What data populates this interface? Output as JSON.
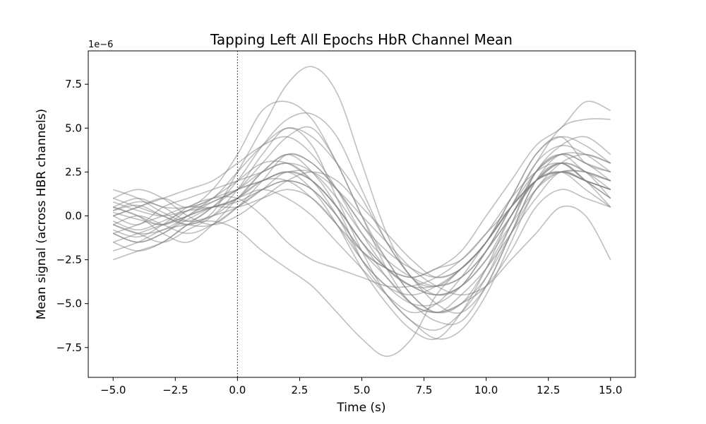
{
  "chart_data": {
    "type": "line",
    "title": "Tapping Left All Epochs HbR Channel Mean",
    "xlabel": "Time (s)",
    "ylabel": "Mean signal (across HBR channels)",
    "y_offset_label": "1e−6",
    "xlim": [
      -6.0,
      16.0
    ],
    "ylim": [
      -9.2,
      9.4
    ],
    "x_ticks": [
      -5.0,
      -2.5,
      0.0,
      2.5,
      5.0,
      7.5,
      10.0,
      12.5,
      15.0
    ],
    "x_tick_labels": [
      "−5.0",
      "−2.5",
      "0.0",
      "2.5",
      "5.0",
      "7.5",
      "10.0",
      "12.5",
      "15.0"
    ],
    "y_ticks": [
      -7.5,
      -5.0,
      -2.5,
      0.0,
      2.5,
      5.0,
      7.5
    ],
    "y_tick_labels": [
      "−7.5",
      "−5.0",
      "−2.5",
      "0.0",
      "2.5",
      "5.0",
      "7.5"
    ],
    "event_line_x": 0.0,
    "grid": false,
    "line_color": "#7f7f7f",
    "x": [
      -5,
      -4,
      -3,
      -2,
      -1,
      0,
      1,
      2,
      3,
      4,
      5,
      6,
      7,
      8,
      9,
      10,
      11,
      12,
      13,
      14,
      15
    ],
    "series": [
      {
        "values": [
          1.5,
          1.0,
          0.2,
          -0.3,
          0.5,
          2.0,
          4.0,
          5.5,
          5.8,
          4.5,
          1.5,
          -1.5,
          -3.5,
          -5.0,
          -5.5,
          -4.0,
          -1.0,
          2.0,
          3.5,
          3.0,
          2.5
        ]
      },
      {
        "values": [
          -0.5,
          -1.0,
          -0.8,
          0.0,
          0.8,
          1.5,
          3.0,
          4.5,
          5.0,
          3.0,
          0.0,
          -2.5,
          -4.5,
          -5.5,
          -4.5,
          -3.0,
          -1.0,
          1.0,
          2.5,
          2.0,
          1.5
        ]
      },
      {
        "values": [
          0.3,
          0.6,
          0.0,
          -0.5,
          0.2,
          2.5,
          5.0,
          7.5,
          8.5,
          7.0,
          3.0,
          -1.0,
          -3.5,
          -4.0,
          -3.0,
          -1.5,
          1.0,
          3.5,
          4.5,
          4.0,
          3.0
        ]
      },
      {
        "values": [
          -1.0,
          -1.5,
          -1.0,
          -0.2,
          0.5,
          1.0,
          2.5,
          3.5,
          2.5,
          0.5,
          -2.5,
          -4.5,
          -6.0,
          -6.5,
          -5.5,
          -3.5,
          -0.5,
          2.5,
          3.5,
          2.5,
          2.0
        ]
      },
      {
        "values": [
          0.0,
          0.5,
          1.0,
          0.5,
          1.5,
          3.5,
          6.0,
          6.5,
          5.5,
          3.0,
          0.0,
          -3.0,
          -5.0,
          -5.5,
          -5.0,
          -3.5,
          -1.0,
          1.5,
          3.0,
          3.5,
          3.0
        ]
      },
      {
        "values": [
          -2.0,
          -1.5,
          -0.8,
          -0.5,
          -0.3,
          -0.8,
          -2.0,
          -3.0,
          -4.0,
          -5.5,
          -7.0,
          -8.0,
          -7.0,
          -4.5,
          -3.0,
          -1.5,
          1.0,
          3.5,
          4.5,
          3.0,
          2.5
        ]
      },
      {
        "values": [
          0.5,
          0.0,
          -0.5,
          0.3,
          1.0,
          1.5,
          2.0,
          2.5,
          2.0,
          0.5,
          -1.5,
          -3.0,
          -4.0,
          -4.5,
          -4.0,
          -2.5,
          0.0,
          2.0,
          2.5,
          2.5,
          2.0
        ]
      },
      {
        "values": [
          -1.5,
          -1.0,
          -0.5,
          0.0,
          0.5,
          0.8,
          1.5,
          2.0,
          1.5,
          0.0,
          -2.0,
          -3.5,
          -5.0,
          -6.0,
          -6.0,
          -4.0,
          -1.0,
          2.0,
          3.0,
          2.0,
          1.0
        ]
      },
      {
        "values": [
          1.0,
          1.5,
          1.0,
          0.0,
          -0.5,
          0.0,
          1.0,
          2.0,
          2.5,
          2.0,
          0.5,
          -1.0,
          -2.5,
          -3.5,
          -3.0,
          -1.5,
          0.5,
          2.5,
          3.5,
          3.5,
          3.0
        ]
      },
      {
        "values": [
          -0.5,
          -1.0,
          -1.5,
          -0.8,
          0.0,
          1.5,
          3.5,
          5.0,
          4.0,
          1.0,
          -2.0,
          -4.5,
          -6.0,
          -7.0,
          -6.5,
          -4.5,
          -1.5,
          1.5,
          2.5,
          2.0,
          1.5
        ]
      },
      {
        "values": [
          0.0,
          -0.5,
          0.5,
          1.0,
          1.5,
          2.0,
          2.5,
          3.0,
          2.0,
          0.0,
          -2.5,
          -4.0,
          -5.0,
          -5.0,
          -4.0,
          -2.0,
          0.5,
          3.0,
          4.0,
          3.5,
          2.5
        ]
      },
      {
        "values": [
          -1.0,
          -0.5,
          0.0,
          0.5,
          0.5,
          1.0,
          1.5,
          1.0,
          0.0,
          -1.5,
          -3.0,
          -4.5,
          -5.5,
          -5.0,
          -3.5,
          -1.5,
          0.5,
          2.0,
          3.0,
          2.5,
          1.5
        ]
      },
      {
        "values": [
          0.5,
          1.0,
          0.5,
          0.5,
          1.0,
          2.5,
          4.0,
          5.0,
          4.5,
          3.0,
          1.0,
          -1.5,
          -3.5,
          -4.5,
          -4.0,
          -2.0,
          0.0,
          2.5,
          3.5,
          3.0,
          2.0
        ]
      },
      {
        "values": [
          -2.5,
          -2.0,
          -1.5,
          -0.5,
          0.5,
          1.5,
          2.0,
          2.5,
          1.5,
          -0.5,
          -3.0,
          -5.0,
          -6.5,
          -7.0,
          -5.5,
          -3.0,
          0.0,
          2.0,
          2.5,
          1.5,
          0.5
        ]
      },
      {
        "values": [
          0.2,
          -0.2,
          -0.5,
          0.0,
          0.5,
          0.5,
          1.0,
          1.5,
          1.0,
          -0.5,
          -2.5,
          -4.0,
          -4.5,
          -4.0,
          -3.0,
          -1.5,
          0.5,
          2.0,
          2.5,
          2.0,
          1.5
        ]
      },
      {
        "values": [
          -0.8,
          -1.2,
          -0.5,
          0.5,
          1.0,
          1.0,
          0.0,
          -1.5,
          -2.5,
          -3.0,
          -3.5,
          -4.0,
          -4.0,
          -3.5,
          -2.5,
          -1.0,
          0.5,
          2.0,
          3.0,
          2.5,
          1.0
        ]
      },
      {
        "values": [
          1.0,
          0.5,
          0.0,
          -0.5,
          -0.5,
          0.5,
          2.0,
          3.5,
          3.0,
          1.5,
          -0.5,
          -2.5,
          -4.5,
          -5.5,
          -5.0,
          -3.0,
          -0.5,
          2.5,
          4.0,
          4.5,
          3.5
        ]
      },
      {
        "values": [
          -1.5,
          -2.0,
          -1.5,
          -0.5,
          0.0,
          0.5,
          1.5,
          2.5,
          2.0,
          0.5,
          -1.5,
          -3.5,
          -5.0,
          -5.5,
          -5.0,
          -4.0,
          -2.0,
          0.5,
          1.5,
          1.0,
          0.5
        ]
      },
      {
        "values": [
          0.0,
          0.5,
          1.0,
          1.5,
          2.0,
          3.0,
          4.0,
          4.5,
          3.5,
          1.5,
          -1.0,
          -3.0,
          -4.0,
          -4.0,
          -3.5,
          -2.0,
          0.5,
          3.0,
          5.0,
          5.5,
          5.5
        ]
      },
      {
        "values": [
          -0.5,
          0.0,
          -0.5,
          -1.0,
          -0.5,
          0.5,
          1.5,
          2.0,
          1.5,
          0.0,
          -2.0,
          -3.0,
          -3.5,
          -3.0,
          -2.5,
          -1.0,
          1.0,
          2.5,
          3.0,
          2.0,
          1.0
        ]
      },
      {
        "values": [
          0.5,
          0.0,
          -1.0,
          -1.5,
          -0.5,
          1.0,
          2.5,
          3.5,
          3.0,
          1.5,
          -0.5,
          -2.0,
          -3.0,
          -3.5,
          -3.0,
          -1.5,
          0.5,
          2.0,
          2.5,
          2.0,
          1.5
        ]
      },
      {
        "values": [
          -1.0,
          -1.5,
          -1.0,
          0.0,
          1.0,
          2.0,
          3.0,
          3.0,
          2.0,
          0.5,
          -1.5,
          -3.0,
          -4.0,
          -4.5,
          -4.0,
          -2.5,
          -0.5,
          1.5,
          2.5,
          2.5,
          2.0
        ]
      },
      {
        "values": [
          0.3,
          0.8,
          0.5,
          -0.3,
          0.0,
          1.0,
          2.0,
          2.0,
          1.0,
          -0.5,
          -2.0,
          -3.0,
          -3.5,
          -3.0,
          -2.0,
          0.0,
          2.0,
          4.0,
          5.0,
          6.5,
          6.0
        ]
      },
      {
        "values": [
          -0.3,
          -0.8,
          -0.3,
          0.3,
          0.8,
          1.5,
          2.5,
          3.0,
          2.5,
          1.0,
          -1.0,
          -2.5,
          -3.5,
          -4.0,
          -3.5,
          -2.0,
          0.0,
          2.0,
          3.0,
          2.0,
          0.5
        ]
      },
      {
        "values": [
          0.8,
          0.3,
          0.0,
          0.3,
          0.5,
          1.0,
          2.0,
          2.5,
          2.5,
          1.5,
          0.0,
          -1.5,
          -3.0,
          -4.0,
          -4.5,
          -4.0,
          -2.5,
          -1.0,
          0.5,
          0.0,
          -2.5
        ]
      }
    ]
  }
}
